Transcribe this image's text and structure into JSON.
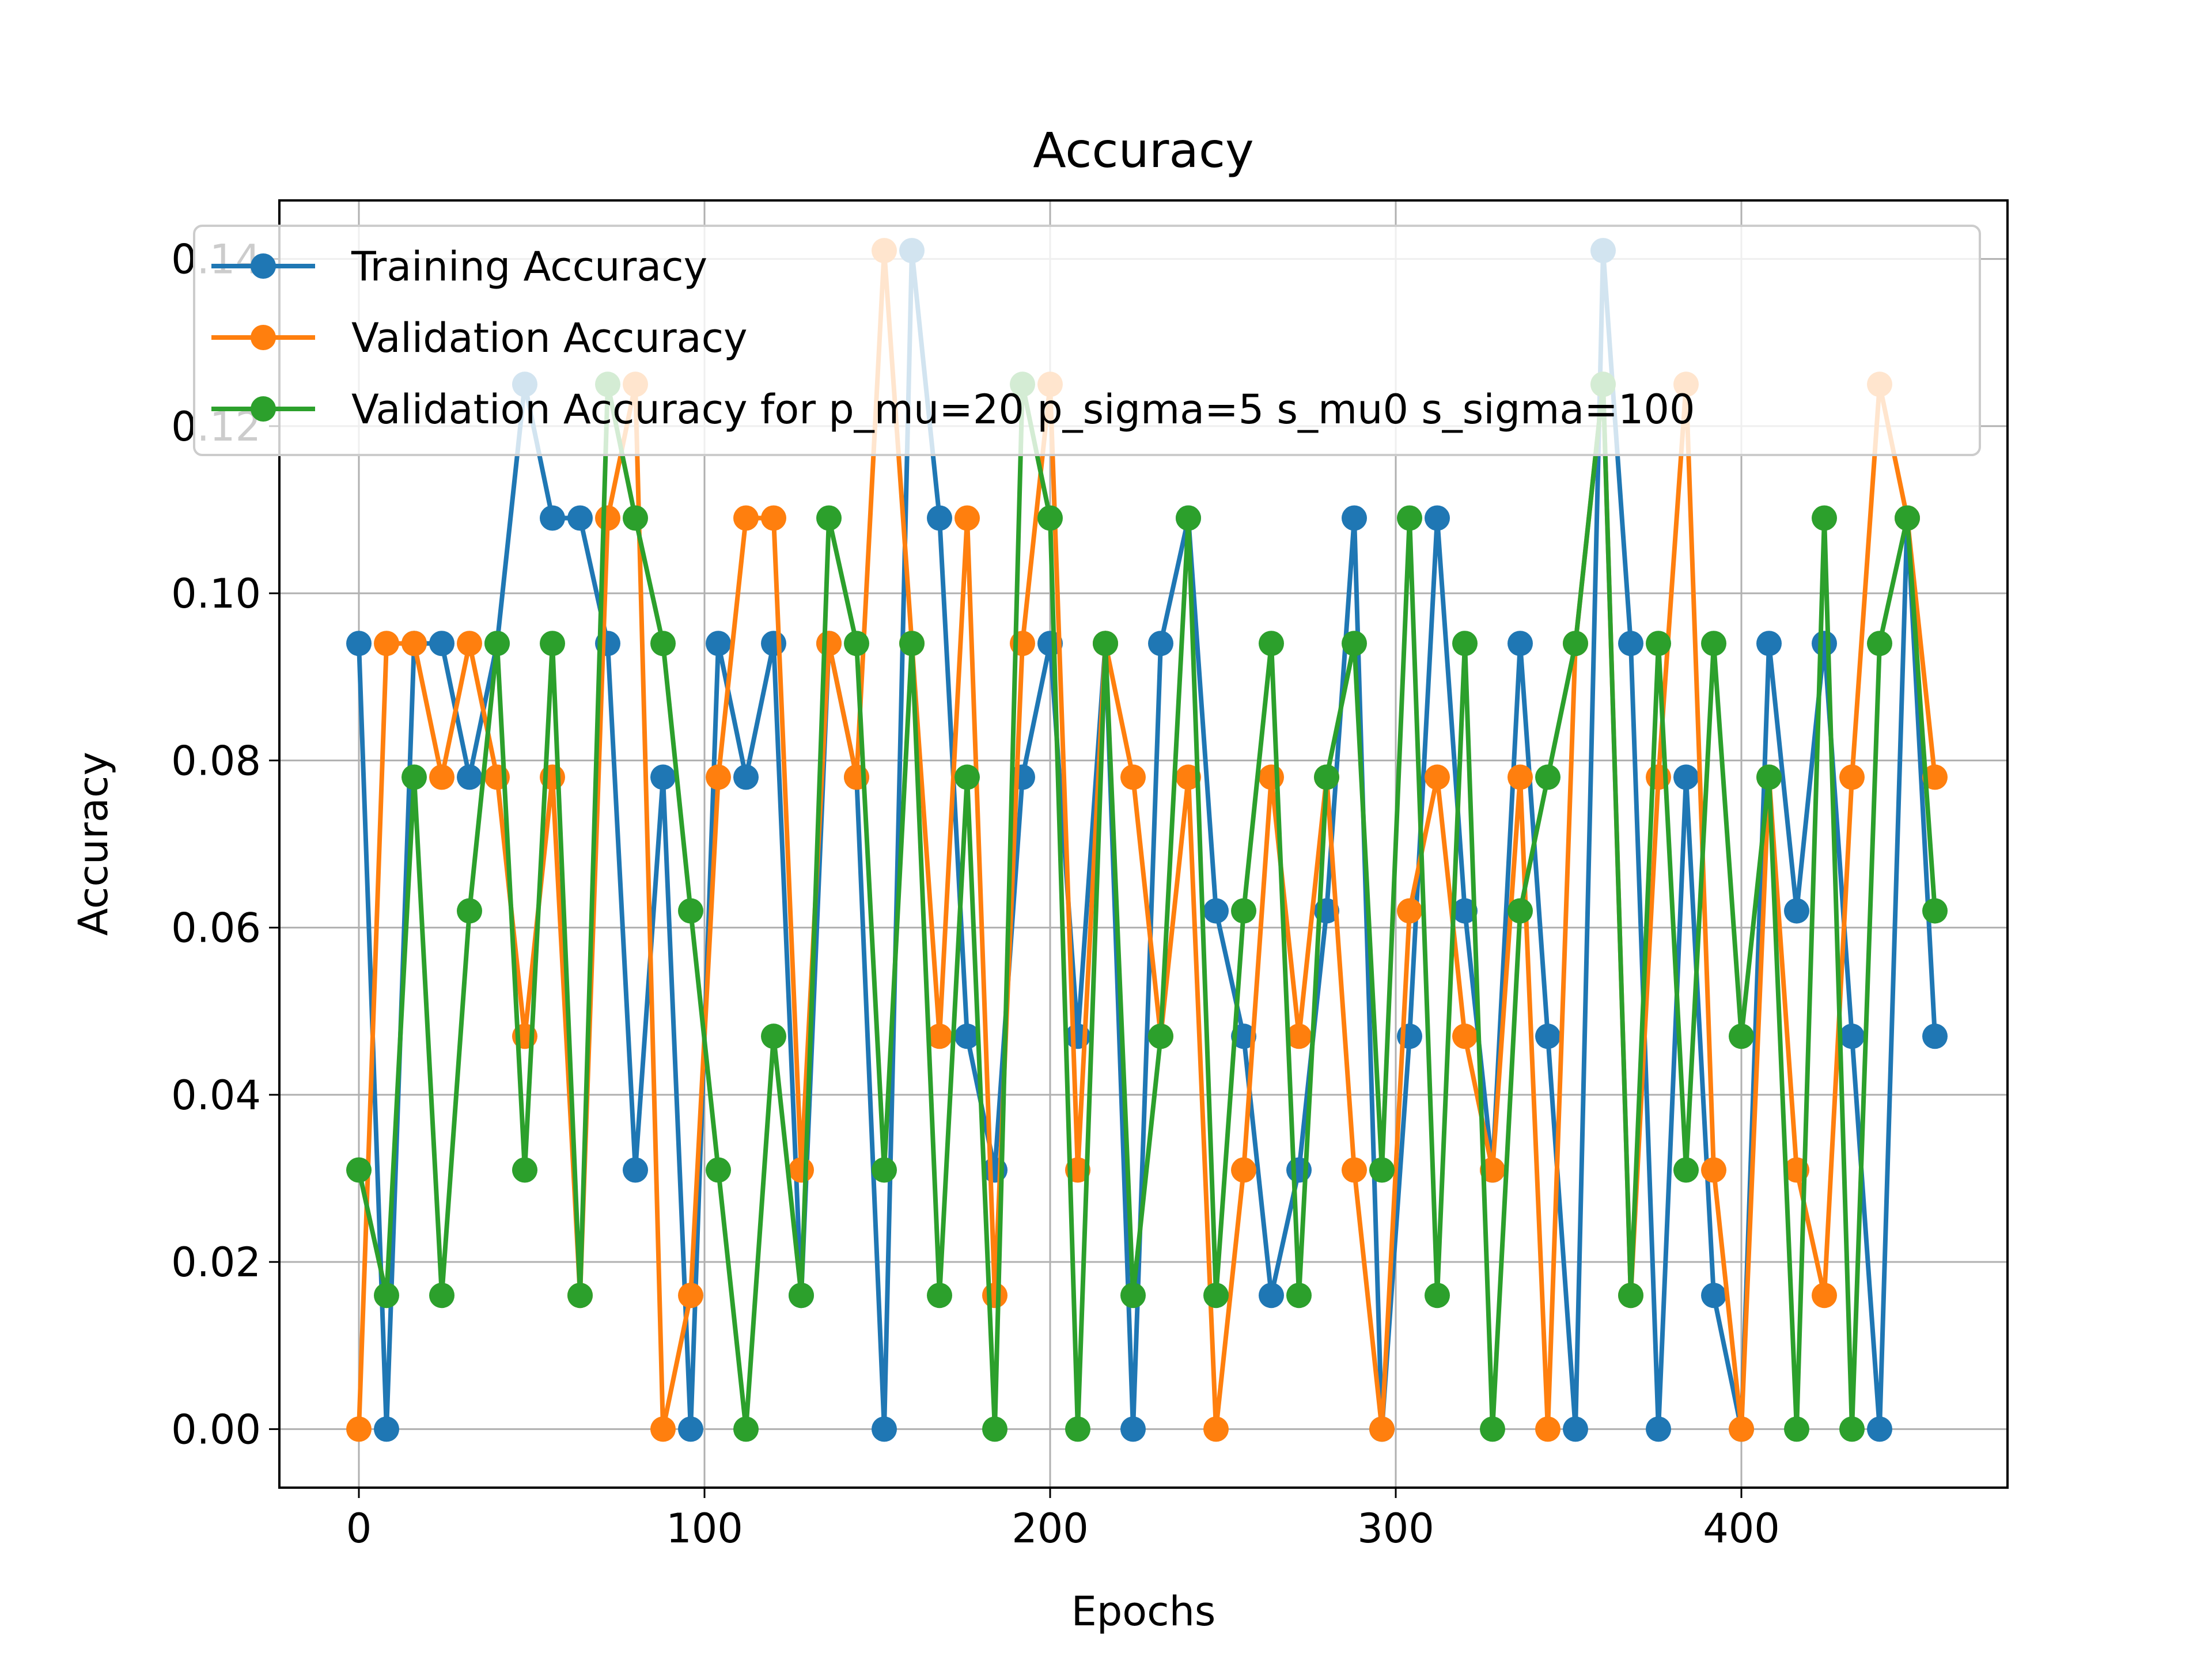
{
  "chart_data": {
    "type": "line",
    "title": "Accuracy",
    "xlabel": "Epochs",
    "ylabel": "Accuracy",
    "xlim": [
      -23,
      477
    ],
    "ylim": [
      -0.007,
      0.147
    ],
    "x_ticks": [
      0,
      100,
      200,
      300,
      400
    ],
    "x_tick_labels": [
      "0",
      "100",
      "200",
      "300",
      "400"
    ],
    "y_ticks": [
      0.0,
      0.02,
      0.04,
      0.06,
      0.08,
      0.1,
      0.12,
      0.14
    ],
    "y_tick_labels": [
      "0.00",
      "0.02",
      "0.04",
      "0.06",
      "0.08",
      "0.10",
      "0.12",
      "0.14"
    ],
    "grid": true,
    "legend_position": "top-right",
    "x": [
      0,
      8,
      16,
      24,
      32,
      40,
      48,
      56,
      64,
      72,
      80,
      88,
      96,
      104,
      112,
      120,
      128,
      136,
      144,
      152,
      160,
      168,
      176,
      184,
      192,
      200,
      208,
      216,
      224,
      232,
      240,
      248,
      256,
      264,
      272,
      280,
      288,
      296,
      304,
      312,
      320,
      328,
      336,
      344,
      352,
      360,
      368,
      376,
      384,
      392,
      400,
      408,
      416,
      424,
      432,
      440,
      448,
      456
    ],
    "series": [
      {
        "name": "Training Accuracy",
        "color": "#1f77b4",
        "values": [
          0.094,
          0.0,
          0.094,
          0.094,
          0.078,
          0.094,
          0.125,
          0.109,
          0.109,
          0.094,
          0.031,
          0.078,
          0.0,
          0.094,
          0.078,
          0.094,
          0.016,
          0.094,
          0.078,
          0.0,
          0.141,
          0.109,
          0.047,
          0.031,
          0.078,
          0.094,
          0.047,
          0.094,
          0.0,
          0.094,
          0.109,
          0.062,
          0.047,
          0.016,
          0.031,
          0.062,
          0.109,
          0.0,
          0.047,
          0.109,
          0.062,
          0.031,
          0.094,
          0.047,
          0.0,
          0.141,
          0.094,
          0.0,
          0.078,
          0.016,
          0.0,
          0.094,
          0.062,
          0.094,
          0.047,
          0.0,
          0.109,
          0.047
        ]
      },
      {
        "name": "Validation Accuracy",
        "color": "#ff7f0e",
        "values": [
          0.0,
          0.094,
          0.094,
          0.078,
          0.094,
          0.078,
          0.047,
          0.078,
          0.016,
          0.109,
          0.125,
          0.0,
          0.016,
          0.078,
          0.109,
          0.109,
          0.031,
          0.094,
          0.078,
          0.141,
          0.094,
          0.047,
          0.109,
          0.016,
          0.094,
          0.125,
          0.031,
          0.094,
          0.078,
          0.047,
          0.078,
          0.0,
          0.031,
          0.078,
          0.047,
          0.078,
          0.031,
          0.0,
          0.062,
          0.078,
          0.047,
          0.031,
          0.078,
          0.0,
          0.094,
          0.125,
          0.016,
          0.078,
          0.125,
          0.031,
          0.0,
          0.078,
          0.031,
          0.016,
          0.078,
          0.125,
          0.109,
          0.078
        ]
      },
      {
        "name": "Validation Accuracy for p_mu=20 p_sigma=5 s_mu0 s_sigma=100",
        "color": "#2ca02c",
        "values": [
          0.031,
          0.016,
          0.078,
          0.016,
          0.062,
          0.094,
          0.031,
          0.094,
          0.016,
          0.125,
          0.109,
          0.094,
          0.062,
          0.031,
          0.0,
          0.047,
          0.016,
          0.109,
          0.094,
          0.031,
          0.094,
          0.016,
          0.078,
          0.0,
          0.125,
          0.109,
          0.0,
          0.094,
          0.016,
          0.047,
          0.109,
          0.016,
          0.062,
          0.094,
          0.016,
          0.078,
          0.094,
          0.031,
          0.109,
          0.016,
          0.094,
          0.0,
          0.062,
          0.078,
          0.094,
          0.125,
          0.016,
          0.094,
          0.031,
          0.094,
          0.047,
          0.078,
          0.0,
          0.109,
          0.0,
          0.094,
          0.109,
          0.062
        ]
      }
    ]
  }
}
